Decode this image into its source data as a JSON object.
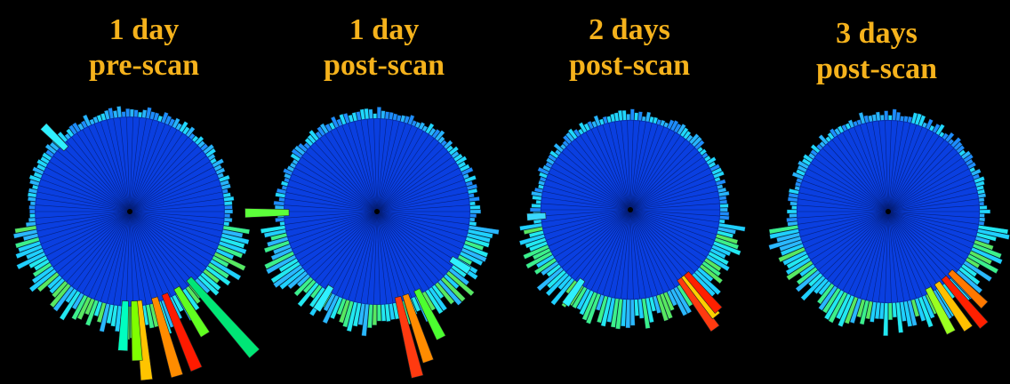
{
  "panels": [
    {
      "line1": "1 day",
      "line2": "pre-scan",
      "spikes": [
        [
          0.72,
          1.9,
          "#00e676"
        ],
        [
          0.4,
          1.72,
          "#ff1a00"
        ],
        [
          0.28,
          1.72,
          "#ff8c00"
        ],
        [
          0.1,
          1.7,
          "#ffc400"
        ],
        [
          0.05,
          1.5,
          "#7fff00"
        ],
        [
          -0.05,
          1.4,
          "#00ffc0"
        ],
        [
          -2.35,
          1.22,
          "#2ff0ff"
        ],
        [
          0.55,
          1.45,
          "#60ff20"
        ]
      ]
    },
    {
      "line1": "1 day",
      "line2": "post-scan",
      "spikes": [
        [
          -1.56,
          1.35,
          "#5cff3a"
        ],
        [
          0.33,
          1.62,
          "#ff8c00"
        ],
        [
          0.24,
          1.74,
          "#ff3a10"
        ],
        [
          0.47,
          1.45,
          "#4cff30"
        ],
        [
          -0.55,
          1.18,
          "#2ff0ff"
        ],
        [
          1.0,
          1.12,
          "#2ff0ff"
        ]
      ]
    },
    {
      "line1": "2 days",
      "line2": "post-scan",
      "spikes": [
        [
          0.62,
          1.55,
          "#ff3a10"
        ],
        [
          0.68,
          1.45,
          "#ffd000"
        ],
        [
          0.72,
          1.42,
          "#ff2000"
        ],
        [
          -0.6,
          1.22,
          "#2ff0ff"
        ],
        [
          -1.5,
          1.1,
          "#3ad8ff"
        ]
      ]
    },
    {
      "line1": "3 days",
      "line2": "post-scan",
      "spikes": [
        [
          0.7,
          1.55,
          "#ff2000"
        ],
        [
          0.6,
          1.48,
          "#ffc000"
        ],
        [
          0.48,
          1.42,
          "#9aff20"
        ],
        [
          0.8,
          1.4,
          "#ff7800"
        ]
      ]
    }
  ]
}
